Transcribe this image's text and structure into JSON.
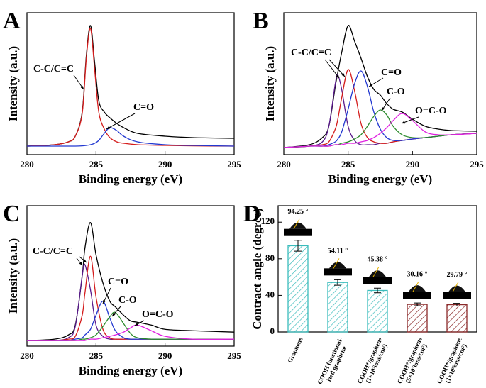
{
  "chart_data": [
    {
      "type": "line",
      "panel_label": "A",
      "xlabel": "Binding energy (eV)",
      "ylabel": "Intensity (a.u.)",
      "xlim": [
        280,
        295
      ],
      "xticks": [
        280,
        285,
        290,
        295
      ],
      "ylim": [
        0,
        100
      ],
      "x": [
        280,
        282,
        283,
        283.5,
        284,
        284.3,
        284.6,
        284.9,
        285.2,
        285.6,
        286,
        286.5,
        287,
        288,
        290,
        292,
        295
      ],
      "series": [
        {
          "color": "#000000",
          "values": [
            6,
            7,
            9,
            13,
            30,
            70,
            91,
            65,
            38,
            30,
            26,
            22,
            19,
            15,
            13,
            12,
            11.5
          ]
        },
        {
          "name": "C-C/C=C",
          "color": "#d41c1c",
          "values": [
            6,
            7,
            9,
            13,
            29,
            68,
            89,
            60,
            30,
            18,
            12,
            9,
            8,
            7,
            6.5,
            6.2,
            6
          ]
        },
        {
          "name": "C=O",
          "color": "#2238d0",
          "values": [
            6,
            6,
            6,
            6,
            6.2,
            6.5,
            7,
            8,
            10,
            15,
            19,
            17,
            13,
            9,
            7,
            6.5,
            6
          ]
        }
      ]
    },
    {
      "type": "line",
      "panel_label": "B",
      "xlabel": "Binding energy (eV)",
      "ylabel": "Intensity (a.u.)",
      "xlim": [
        280,
        295
      ],
      "xticks": [
        280,
        285,
        290,
        295
      ],
      "ylim": [
        0,
        100
      ],
      "x": [
        280,
        282,
        283,
        283.5,
        284,
        284.2,
        284.5,
        285,
        285.5,
        286,
        286.5,
        287,
        287.5,
        288,
        288.5,
        289.2,
        290,
        291,
        292,
        293,
        295
      ],
      "series": [
        {
          "color": "#000000",
          "values": [
            5,
            7,
            12,
            20,
            48,
            58,
            72,
            91,
            80,
            68,
            55,
            46,
            42,
            36,
            32,
            30,
            25,
            20,
            18,
            17,
            16.5
          ]
        },
        {
          "name": "C-C/C=C",
          "color": "#5a1a8c",
          "values": [
            5,
            6,
            9,
            20,
            50,
            56,
            46,
            20,
            10,
            7,
            7,
            7,
            8,
            8,
            9,
            10,
            11,
            12,
            13,
            14,
            15
          ]
        },
        {
          "color": "#d41c1c",
          "values": [
            5,
            6,
            7,
            9,
            18,
            25,
            40,
            60,
            45,
            22,
            12,
            9,
            8,
            8,
            9,
            10,
            11,
            12,
            13,
            14,
            15
          ]
        },
        {
          "name": "C=O",
          "color": "#2238d0",
          "values": [
            5,
            6,
            6,
            7,
            9,
            11,
            16,
            32,
            50,
            59,
            48,
            30,
            18,
            12,
            10,
            10,
            11,
            12,
            13,
            14,
            15
          ]
        },
        {
          "name": "C-O",
          "color": "#2a8a2a",
          "values": [
            5,
            6,
            6,
            6,
            7,
            7,
            8,
            9,
            11,
            14,
            20,
            27,
            31.5,
            28,
            20,
            14,
            12,
            12,
            13,
            14,
            15
          ]
        },
        {
          "name": "O=C-O",
          "color": "#e020e0",
          "values": [
            5,
            6,
            6,
            6,
            7,
            7,
            7,
            8,
            8,
            9,
            10,
            12,
            15,
            19,
            24,
            29,
            24,
            16,
            14,
            14,
            15
          ]
        }
      ]
    },
    {
      "type": "line",
      "panel_label": "C",
      "xlabel": "Binding energy (eV)",
      "ylabel": "Intensity (a.u.)",
      "xlim": [
        280,
        295
      ],
      "xticks": [
        280,
        285,
        290,
        295
      ],
      "ylim": [
        0,
        100
      ],
      "x": [
        280,
        282,
        283,
        283.5,
        284,
        284.2,
        284.6,
        285,
        285.5,
        286,
        286.4,
        287,
        287.5,
        288,
        289,
        290,
        292,
        295
      ],
      "series": [
        {
          "color": "#000000",
          "values": [
            4,
            5,
            8,
            15,
            50,
            70,
            88,
            65,
            45,
            32,
            28,
            22,
            18,
            17,
            15,
            12,
            11,
            10
          ]
        },
        {
          "name": "C-C/C=C",
          "color": "#5a1a8c",
          "values": [
            4,
            4,
            6,
            14,
            50,
            58,
            40,
            15,
            7,
            5,
            5,
            5,
            5,
            5,
            5,
            5,
            5,
            5
          ]
        },
        {
          "color": "#d41c1c",
          "values": [
            4,
            4,
            5,
            7,
            22,
            38,
            64,
            35,
            12,
            6,
            5,
            5,
            5,
            5,
            5,
            5,
            5,
            5
          ]
        },
        {
          "name": "C=O",
          "color": "#2238d0",
          "values": [
            4,
            4,
            4,
            5,
            6,
            8,
            12,
            22,
            32,
            20,
            11,
            6,
            5,
            5,
            5,
            5,
            5,
            5
          ]
        },
        {
          "name": "C-O",
          "color": "#2a8a2a",
          "values": [
            4,
            4,
            4,
            4,
            5,
            5,
            6,
            8,
            14,
            21,
            24,
            16,
            9,
            6,
            5,
            5,
            5,
            5
          ]
        },
        {
          "name": "O=C-O",
          "color": "#e020e0",
          "values": [
            4,
            4,
            4,
            4,
            4,
            4,
            5,
            5,
            6,
            7,
            8,
            10,
            13,
            15,
            11,
            7,
            5,
            5
          ]
        }
      ]
    },
    {
      "type": "bar",
      "panel_label": "D",
      "ylabel": "Contract angle (degree)",
      "categories": [
        "Graphene",
        "COOH functional-\nized graphene",
        "COOH⁺/graphene\n(1×10⁷ions/cm²)",
        "COOH⁺/graphene\n(5×10⁷ions/cm²)",
        "COOH⁺/graphene\n(1×10⁸ions/cm²)"
      ],
      "values": [
        94.25,
        54.11,
        45.38,
        30.16,
        29.79
      ],
      "value_labels": [
        "94.25 °",
        "54.11 °",
        "45.38 °",
        "30.16 °",
        "29.79 °"
      ],
      "errors": [
        6,
        3,
        2.5,
        1.5,
        1.5
      ],
      "colors": [
        "#3bbcbc",
        "#3bbcbc",
        "#3bbcbc",
        "#8b2a2a",
        "#8b2a2a"
      ],
      "ylim": [
        0,
        138
      ],
      "yticks": [
        0,
        40,
        80,
        120
      ]
    }
  ]
}
